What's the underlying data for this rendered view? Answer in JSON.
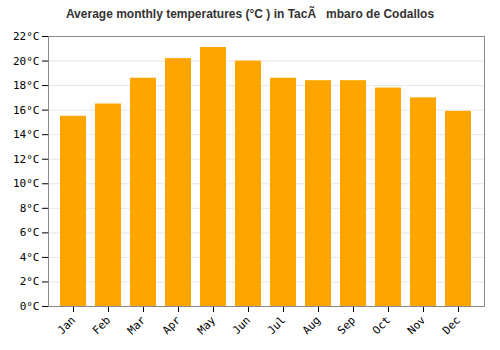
{
  "chart_data": {
    "type": "bar",
    "title": "Average monthly temperatures (°C ) in TacÃmbaro de Codallos",
    "categories": [
      "Jan",
      "Feb",
      "Mar",
      "Apr",
      "May",
      "Jun",
      "Jul",
      "Aug",
      "Sep",
      "Oct",
      "Nov",
      "Dec"
    ],
    "values": [
      15.5,
      16.5,
      18.6,
      20.2,
      21.1,
      20.0,
      18.6,
      18.4,
      18.4,
      17.8,
      17.0,
      15.9
    ],
    "color": "#FFA500",
    "ylim": [
      0,
      22
    ],
    "yticks": [
      {
        "value": 0,
        "label": "0°C"
      },
      {
        "value": 2,
        "label": "2°C"
      },
      {
        "value": 4,
        "label": "4°C"
      },
      {
        "value": 6,
        "label": "6°C"
      },
      {
        "value": 8,
        "label": "8°C"
      },
      {
        "value": 10,
        "label": "10°C"
      },
      {
        "value": 12,
        "label": "12°C"
      },
      {
        "value": 14,
        "label": "14°C"
      },
      {
        "value": 16,
        "label": "16°C"
      },
      {
        "value": 18,
        "label": "18°C"
      },
      {
        "value": 20,
        "label": "20°C"
      },
      {
        "value": 22,
        "label": "22°C"
      }
    ],
    "grid": true
  }
}
